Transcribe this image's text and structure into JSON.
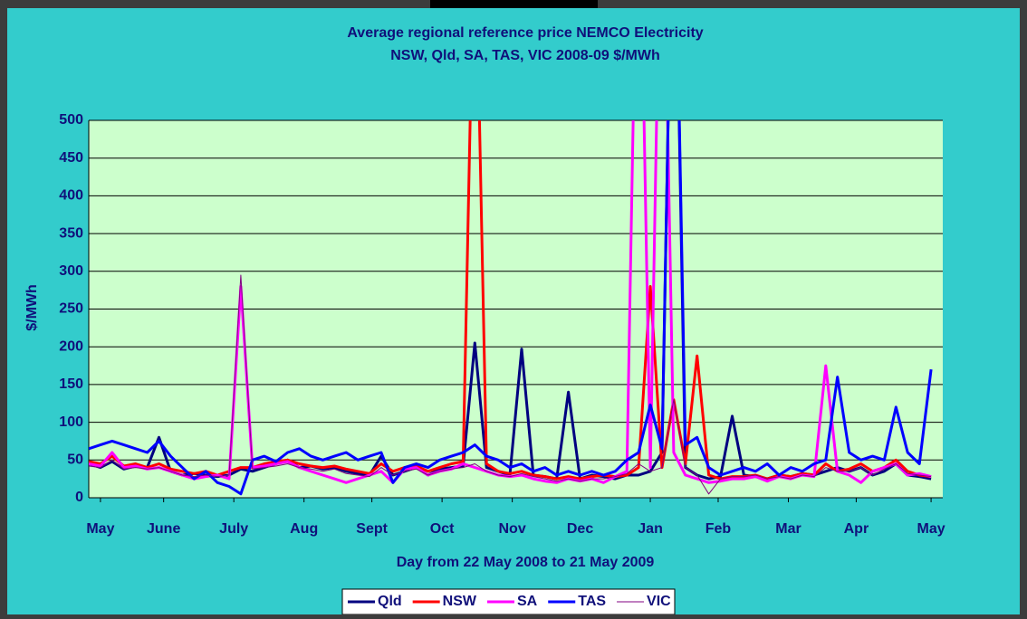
{
  "chart_data": {
    "type": "line",
    "title": "Average regional reference price NEMCO Electricity",
    "subtitle": "NSW, Qld, SA, TAS, VIC 2008-09  $/MWh",
    "x_label": "Day from 22 May 2008 to 21 May 2009",
    "y_label": "$/MWh",
    "x": [
      0,
      5,
      10,
      15,
      20,
      25,
      30,
      35,
      40,
      45,
      50,
      55,
      60,
      65,
      70,
      75,
      80,
      85,
      90,
      95,
      100,
      105,
      110,
      115,
      120,
      125,
      130,
      135,
      140,
      145,
      150,
      155,
      160,
      165,
      170,
      175,
      180,
      185,
      190,
      195,
      200,
      205,
      210,
      215,
      220,
      225,
      230,
      235,
      240,
      245,
      250,
      255,
      260,
      265,
      270,
      275,
      280,
      285,
      290,
      295,
      300,
      305,
      310,
      315,
      320,
      325,
      330,
      335,
      340,
      345,
      350,
      355,
      360
    ],
    "xlim": [
      0,
      365
    ],
    "xticks": [
      {
        "value": 5,
        "label": "May"
      },
      {
        "value": 32,
        "label": "June"
      },
      {
        "value": 62,
        "label": "July"
      },
      {
        "value": 92,
        "label": "Aug"
      },
      {
        "value": 121,
        "label": "Sept"
      },
      {
        "value": 151,
        "label": "Oct"
      },
      {
        "value": 181,
        "label": "Nov"
      },
      {
        "value": 210,
        "label": "Dec"
      },
      {
        "value": 240,
        "label": "Jan"
      },
      {
        "value": 269,
        "label": "Feb"
      },
      {
        "value": 299,
        "label": "Mar"
      },
      {
        "value": 328,
        "label": "Apr"
      },
      {
        "value": 360,
        "label": "May"
      }
    ],
    "ylim": [
      0,
      500
    ],
    "yticks": [
      0,
      50,
      100,
      150,
      200,
      250,
      300,
      350,
      400,
      450,
      500
    ],
    "grid": true,
    "legend": "bottom",
    "series": [
      {
        "name": "Qld",
        "color": "#000080",
        "width": 3,
        "values": [
          45,
          40,
          48,
          38,
          42,
          40,
          80,
          35,
          30,
          32,
          30,
          28,
          30,
          38,
          35,
          40,
          45,
          50,
          40,
          42,
          38,
          40,
          35,
          32,
          30,
          55,
          30,
          35,
          40,
          30,
          38,
          40,
          42,
          205,
          40,
          35,
          30,
          197,
          30,
          28,
          25,
          140,
          25,
          30,
          28,
          25,
          30,
          30,
          35,
          60,
          900,
          40,
          30,
          25,
          28,
          108,
          30,
          28,
          25,
          30,
          28,
          32,
          30,
          35,
          40,
          35,
          40,
          30,
          35,
          45,
          30,
          28,
          25
        ]
      },
      {
        "name": "NSW",
        "color": "#ff0000",
        "width": 3,
        "values": [
          48,
          45,
          55,
          42,
          45,
          40,
          45,
          38,
          35,
          32,
          35,
          30,
          35,
          40,
          40,
          45,
          48,
          50,
          45,
          42,
          40,
          42,
          38,
          35,
          32,
          45,
          35,
          40,
          42,
          35,
          40,
          45,
          48,
          800,
          45,
          35,
          32,
          35,
          30,
          28,
          25,
          28,
          25,
          28,
          30,
          28,
          30,
          40,
          280,
          40,
          130,
          45,
          188,
          30,
          25,
          28,
          28,
          30,
          25,
          30,
          28,
          32,
          30,
          45,
          35,
          38,
          45,
          35,
          40,
          50,
          35,
          30,
          28
        ]
      },
      {
        "name": "SA",
        "color": "#ff00ff",
        "width": 3,
        "values": [
          45,
          42,
          60,
          40,
          42,
          38,
          40,
          35,
          30,
          25,
          28,
          30,
          25,
          280,
          40,
          42,
          45,
          48,
          40,
          35,
          30,
          25,
          20,
          25,
          30,
          35,
          20,
          38,
          40,
          30,
          35,
          38,
          45,
          40,
          35,
          30,
          28,
          30,
          25,
          22,
          20,
          25,
          22,
          25,
          20,
          28,
          35,
          900,
          40,
          900,
          60,
          30,
          25,
          20,
          22,
          25,
          25,
          28,
          22,
          28,
          25,
          30,
          28,
          175,
          35,
          30,
          20,
          35,
          40,
          45,
          30,
          32,
          28
        ]
      },
      {
        "name": "TAS",
        "color": "#0000ff",
        "width": 3,
        "values": [
          65,
          70,
          75,
          70,
          65,
          60,
          75,
          55,
          40,
          25,
          35,
          20,
          15,
          5,
          50,
          55,
          48,
          60,
          65,
          55,
          50,
          55,
          60,
          50,
          55,
          60,
          20,
          40,
          45,
          40,
          50,
          55,
          60,
          70,
          55,
          50,
          40,
          45,
          35,
          40,
          30,
          35,
          30,
          35,
          30,
          35,
          50,
          60,
          123,
          65,
          900,
          70,
          80,
          40,
          30,
          35,
          40,
          35,
          45,
          30,
          40,
          35,
          45,
          50,
          160,
          60,
          50,
          55,
          50,
          120,
          60,
          45,
          170
        ]
      },
      {
        "name": "VIC",
        "color": "#800080",
        "width": 1,
        "values": [
          42,
          40,
          50,
          38,
          40,
          38,
          40,
          35,
          30,
          28,
          30,
          28,
          30,
          295,
          38,
          40,
          42,
          45,
          40,
          38,
          35,
          38,
          32,
          30,
          28,
          40,
          30,
          35,
          38,
          30,
          35,
          38,
          40,
          45,
          35,
          30,
          28,
          32,
          28,
          25,
          22,
          25,
          22,
          25,
          25,
          28,
          32,
          45,
          35,
          40,
          130,
          40,
          30,
          5,
          25,
          28,
          28,
          30,
          25,
          28,
          25,
          30,
          28,
          40,
          35,
          35,
          40,
          30,
          38,
          45,
          32,
          30,
          28
        ]
      }
    ]
  }
}
